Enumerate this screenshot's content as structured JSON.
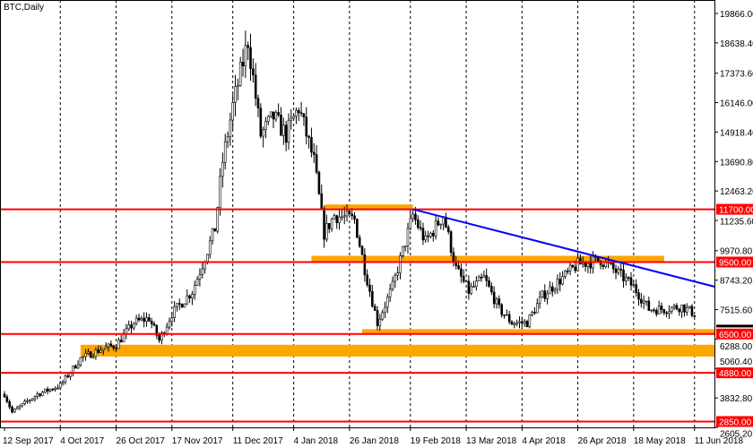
{
  "chart_data": {
    "type": "candlestick",
    "title": "BTC,Daily",
    "ylim": [
      2605.2,
      19866.0
    ],
    "xlim": [
      "2017-09-12",
      "2018-06-11"
    ],
    "y_ticks": [
      "19866.00",
      "18638.40",
      "17373.60",
      "16146.00",
      "14918.40",
      "13690.80",
      "12463.20",
      "11235.60",
      "9970.80",
      "8743.20",
      "7515.60",
      "6288.00",
      "5060.40",
      "3832.80",
      "2605.20"
    ],
    "y_tick_values": [
      19866.0,
      18638.4,
      17373.6,
      16146.0,
      14918.4,
      13690.8,
      12463.2,
      11235.6,
      9970.8,
      8743.2,
      7515.6,
      6288.0,
      5060.4,
      3832.8,
      2605.2
    ],
    "x_ticks": [
      {
        "label": "12 Sep 2017",
        "date": "2017-09-12"
      },
      {
        "label": "4 Oct 2017",
        "date": "2017-10-04"
      },
      {
        "label": "26 Oct 2017",
        "date": "2017-10-26"
      },
      {
        "label": "17 Nov 2017",
        "date": "2017-11-17"
      },
      {
        "label": "11 Dec 2017",
        "date": "2017-12-11"
      },
      {
        "label": "4 Jan 2018",
        "date": "2018-01-04"
      },
      {
        "label": "26 Jan 2018",
        "date": "2018-01-26"
      },
      {
        "label": "19 Feb 2018",
        "date": "2018-02-19"
      },
      {
        "label": "13 Mar 2018",
        "date": "2018-03-13"
      },
      {
        "label": "4 Apr 2018",
        "date": "2018-04-04"
      },
      {
        "label": "26 Apr 2018",
        "date": "2018-04-26"
      },
      {
        "label": "18 May 2018",
        "date": "2018-05-18"
      },
      {
        "label": "11 Jun 2018",
        "date": "2018-06-11"
      }
    ],
    "grid": "vertical-dashed",
    "approx_closes": [
      [
        "2017-09-12",
        3990
      ],
      [
        "2017-09-15",
        3240
      ],
      [
        "2017-09-25",
        3990
      ],
      [
        "2017-10-04",
        4360
      ],
      [
        "2017-10-12",
        5480
      ],
      [
        "2017-10-20",
        5860
      ],
      [
        "2017-10-26",
        6040
      ],
      [
        "2017-11-02",
        6980
      ],
      [
        "2017-11-08",
        7160
      ],
      [
        "2017-11-12",
        6230
      ],
      [
        "2017-11-17",
        7350
      ],
      [
        "2017-11-25",
        8280
      ],
      [
        "2017-11-29",
        9400
      ],
      [
        "2017-12-04",
        10900
      ],
      [
        "2017-12-07",
        13700
      ],
      [
        "2017-12-11",
        16000
      ],
      [
        "2017-12-17",
        18750
      ],
      [
        "2017-12-22",
        14800
      ],
      [
        "2017-12-27",
        15550
      ],
      [
        "2018-01-01",
        14800
      ],
      [
        "2018-01-06",
        15950
      ],
      [
        "2018-01-12",
        13700
      ],
      [
        "2018-01-16",
        10700
      ],
      [
        "2018-01-20",
        11450
      ],
      [
        "2018-01-28",
        11260
      ],
      [
        "2018-02-01",
        9220
      ],
      [
        "2018-02-06",
        6970
      ],
      [
        "2018-02-12",
        8470
      ],
      [
        "2018-02-17",
        10340
      ],
      [
        "2018-02-20",
        11460
      ],
      [
        "2018-02-25",
        10340
      ],
      [
        "2018-03-04",
        11460
      ],
      [
        "2018-03-09",
        9220
      ],
      [
        "2018-03-14",
        8280
      ],
      [
        "2018-03-20",
        8840
      ],
      [
        "2018-03-26",
        7540
      ],
      [
        "2018-03-31",
        6970
      ],
      [
        "2018-04-06",
        6970
      ],
      [
        "2018-04-12",
        8090
      ],
      [
        "2018-04-20",
        8840
      ],
      [
        "2018-04-26",
        9400
      ],
      [
        "2018-05-05",
        9590
      ],
      [
        "2018-05-12",
        9030
      ],
      [
        "2018-05-18",
        8470
      ],
      [
        "2018-05-24",
        7540
      ],
      [
        "2018-05-30",
        7540
      ],
      [
        "2018-06-06",
        7650
      ],
      [
        "2018-06-11",
        7350
      ]
    ],
    "horizontal_levels": [
      {
        "label": "11700.00",
        "value": 11700,
        "color": "#ff0000"
      },
      {
        "label": "9500.00",
        "value": 9500,
        "color": "#ff0000"
      },
      {
        "label": "6500.00",
        "value": 6500,
        "color": "#ff0000"
      },
      {
        "label": "4880.00",
        "value": 4880,
        "color": "#ff0000"
      },
      {
        "label": "2850.00",
        "value": 2850,
        "color": "#ff0000"
      }
    ],
    "zones": [
      {
        "from": "2018-01-16",
        "to": "2018-02-20",
        "low": 11700,
        "high": 11900,
        "color": "#ffa500"
      },
      {
        "from": "2018-01-11",
        "to": "2018-05-30",
        "low": 9500,
        "high": 9760,
        "color": "#ffa500"
      },
      {
        "from": "2018-01-31",
        "to": "2018-06-19",
        "low": 6500,
        "high": 6700,
        "color": "#ffa500"
      },
      {
        "from": "2017-10-12",
        "to": "2018-06-19",
        "low": 5560,
        "high": 6050,
        "color": "#ffa500"
      }
    ],
    "trendline": {
      "from": [
        "2018-02-20",
        11700
      ],
      "to": [
        "2018-06-19",
        8470
      ],
      "color": "#0000ff"
    },
    "current_price_label_color": "#000000"
  }
}
